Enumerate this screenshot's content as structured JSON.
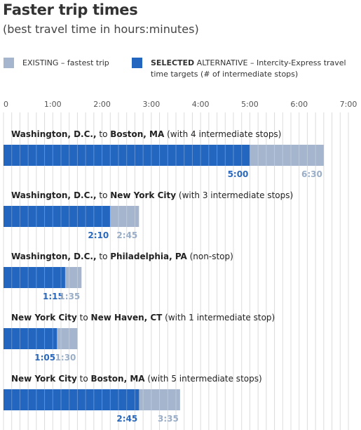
{
  "header": {
    "title": "Faster trip times",
    "subtitle": "(best travel time in hours:minutes)"
  },
  "legend": {
    "existing": "EXISTING – fastest trip",
    "selected_bold": "SELECTED",
    "selected_rest": " ALTERNATIVE – Intercity-Express travel time targets (# of intermediate stops)"
  },
  "colors": {
    "selected": "#2366c0",
    "existing": "#a4b5cd",
    "selected_label": "#2a68bb",
    "existing_label": "#9aaec8",
    "grid": "#dcdcdc"
  },
  "chart_data": {
    "type": "bar",
    "orientation": "horizontal",
    "x_unit": "hours:minutes",
    "xlim_minutes": [
      0,
      420
    ],
    "ticks": [
      "0",
      "1:00",
      "2:00",
      "3:00",
      "4:00",
      "5:00",
      "6:00",
      "7:00"
    ],
    "grid": true,
    "categories": [
      {
        "from": "Washington, D.C.,",
        "join": " to ",
        "to": "Boston, MA",
        "note": " (with 4 intermediate stops)"
      },
      {
        "from": "Washington, D.C.,",
        "join": " to ",
        "to": "New York City",
        "note": " (with 3 intermediate stops)"
      },
      {
        "from": "Washington, D.C.,",
        "join": " to ",
        "to": "Philadelphia, PA",
        "note": " (non-stop)"
      },
      {
        "from": "New York City",
        "join": " to ",
        "to": "New Haven, CT",
        "note": " (with 1 intermediate stop)"
      },
      {
        "from": "New York City",
        "join": " to ",
        "to": "Boston, MA",
        "note": " (with 5 intermediate stops)"
      }
    ],
    "series": [
      {
        "name": "SELECTED ALTERNATIVE",
        "values": [
          "5:00",
          "2:10",
          "1:15",
          "1:05",
          "2:45"
        ],
        "minutes": [
          300,
          130,
          75,
          65,
          165
        ]
      },
      {
        "name": "EXISTING",
        "values": [
          "6:30",
          "2:45",
          "1:35",
          "1:30",
          "3:35"
        ],
        "minutes": [
          390,
          165,
          95,
          90,
          215
        ]
      }
    ]
  }
}
